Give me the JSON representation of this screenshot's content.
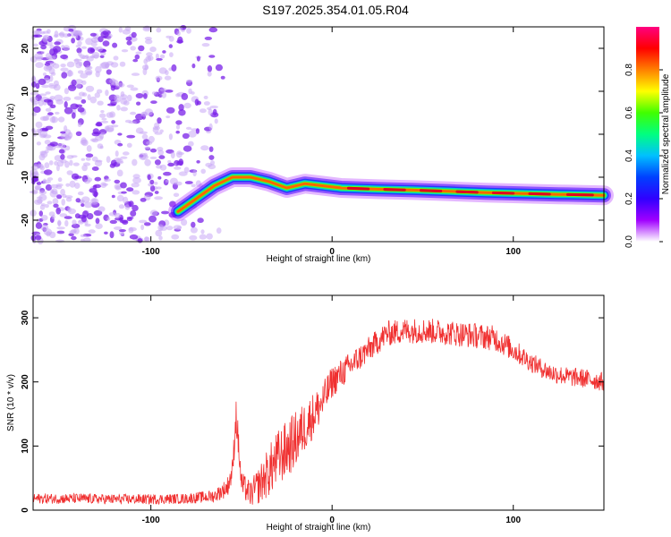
{
  "title": "S197.2025.354.01.05.R04",
  "chart_data": [
    {
      "type": "heatmap",
      "xlabel": "Height of straight line (km)",
      "ylabel": "Frequency (Hz)",
      "xlim": [
        -165,
        150
      ],
      "ylim": [
        -25,
        25
      ],
      "xticks": [
        -100,
        0,
        100
      ],
      "yticks": [
        20,
        10,
        0,
        -10,
        -20
      ],
      "colorbar": {
        "label": "Normalized spectral amplitude",
        "range": [
          0,
          1
        ],
        "ticks": [
          "0.0",
          "0.2",
          "0.4",
          "0.6",
          "0.8"
        ],
        "colormap": [
          "#ffffff",
          "#a000ff",
          "#3000ff",
          "#0040ff",
          "#00c0ff",
          "#00ff80",
          "#40ff00",
          "#ffff00",
          "#ff8000",
          "#ff0000",
          "#ff0080"
        ]
      },
      "ridge": {
        "description_free": true,
        "x": [
          -85,
          -75,
          -65,
          -55,
          -45,
          -35,
          -25,
          -15,
          -5,
          5,
          25,
          45,
          65,
          85,
          105,
          125,
          150
        ],
        "y": [
          -18,
          -15,
          -12,
          -10,
          -10,
          -11,
          -12.5,
          -11.5,
          -12,
          -12.5,
          -12.8,
          -13,
          -13.3,
          -13.6,
          -13.8,
          -14,
          -14.2
        ]
      },
      "noise_region_x": [
        -165,
        -60
      ]
    },
    {
      "type": "line",
      "xlabel": "Height of straight line (km)",
      "ylabel": "SNR (10 * v/v)",
      "xlim": [
        -165,
        150
      ],
      "ylim": [
        0,
        335
      ],
      "xticks": [
        -100,
        0,
        100
      ],
      "yticks": [
        0,
        100,
        200,
        300
      ],
      "color": "#f03030",
      "series": [
        {
          "name": "SNR",
          "x": [
            -165,
            -140,
            -120,
            -100,
            -80,
            -65,
            -58,
            -55,
            -53,
            -50,
            -45,
            -40,
            -35,
            -30,
            -25,
            -20,
            -15,
            -10,
            -5,
            0,
            10,
            20,
            30,
            40,
            50,
            60,
            70,
            80,
            90,
            100,
            110,
            120,
            130,
            140,
            150
          ],
          "y": [
            18,
            18,
            17,
            17,
            18,
            22,
            35,
            60,
            150,
            40,
            25,
            40,
            60,
            80,
            95,
            110,
            130,
            150,
            170,
            200,
            225,
            250,
            275,
            280,
            280,
            278,
            275,
            272,
            268,
            250,
            230,
            215,
            208,
            205,
            200
          ],
          "spread": [
            8,
            8,
            8,
            8,
            8,
            10,
            15,
            20,
            30,
            20,
            20,
            30,
            40,
            45,
            45,
            45,
            40,
            35,
            30,
            25,
            22,
            20,
            20,
            20,
            20,
            20,
            20,
            20,
            20,
            18,
            15,
            15,
            15,
            15,
            15
          ]
        }
      ]
    }
  ]
}
